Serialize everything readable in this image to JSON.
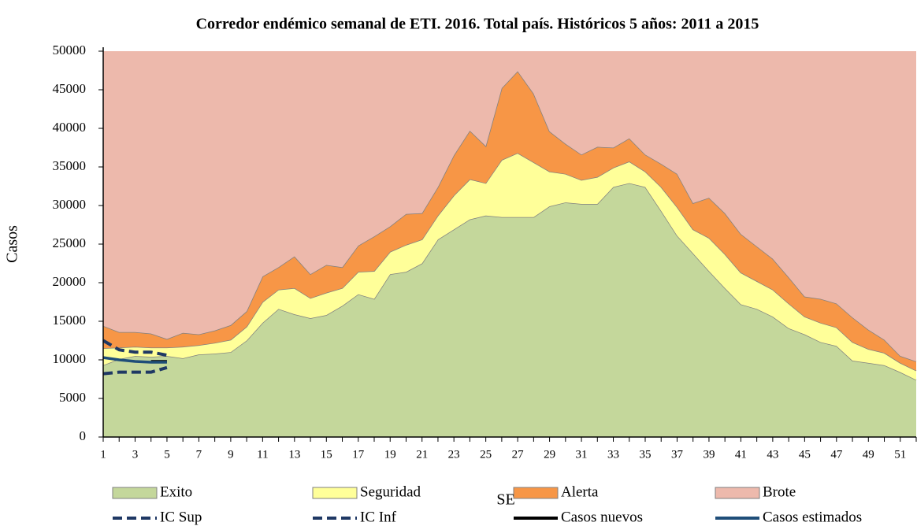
{
  "chart_data": {
    "type": "area",
    "title": "Corredor endémico semanal de ETI. 2016. Total país. Históricos 5 años: 2011 a 2015",
    "xlabel": "SE",
    "ylabel": "Casos",
    "categories": [
      1,
      null,
      3,
      null,
      5,
      null,
      7,
      null,
      9,
      null,
      11,
      null,
      13,
      null,
      15,
      null,
      17,
      null,
      19,
      null,
      21,
      null,
      23,
      null,
      25,
      null,
      27,
      null,
      29,
      null,
      31,
      null,
      33,
      null,
      35,
      null,
      37,
      null,
      39,
      null,
      41,
      null,
      43,
      null,
      45,
      null,
      47,
      null,
      49,
      null,
      51,
      null
    ],
    "ylim": [
      0,
      50000
    ],
    "yticks": [
      0,
      5000,
      10000,
      15000,
      20000,
      25000,
      30000,
      35000,
      40000,
      45000,
      50000
    ],
    "stacked": true,
    "series": [
      {
        "name": "Exito",
        "color": "#c4d79b",
        "values": [
          9300,
          10100,
          10500,
          10400,
          10500,
          10200,
          10700,
          10800,
          11000,
          12500,
          14800,
          16600,
          15900,
          15400,
          15800,
          17000,
          18500,
          17900,
          21100,
          21400,
          22500,
          25600,
          26900,
          28200,
          28700,
          28500,
          28500,
          28500,
          29900,
          30400,
          30200,
          30200,
          32400,
          32900,
          32400,
          29300,
          26100,
          23800,
          21500,
          19300,
          17200,
          16600,
          15600,
          14100,
          13300,
          12300,
          11800,
          9900,
          9600,
          9300,
          8400,
          7400
        ]
      },
      {
        "name": "Seguridad",
        "color": "#ffff99",
        "values": [
          2200,
          1500,
          1200,
          1200,
          1100,
          1500,
          1200,
          1400,
          1600,
          1800,
          2700,
          2500,
          3400,
          2600,
          2900,
          2300,
          2900,
          3600,
          2900,
          3500,
          3100,
          3100,
          4400,
          5200,
          4200,
          7400,
          8300,
          7100,
          4500,
          3700,
          3100,
          3500,
          2500,
          2800,
          2000,
          3100,
          3700,
          3100,
          4300,
          4400,
          4100,
          3600,
          3500,
          3200,
          2300,
          2500,
          2400,
          2400,
          1800,
          1600,
          1200,
          1200
        ]
      },
      {
        "name": "Alerta",
        "color": "#f79646",
        "values": [
          2900,
          2000,
          1900,
          1800,
          1100,
          1800,
          1400,
          1600,
          1900,
          2000,
          3300,
          2900,
          4100,
          3100,
          3600,
          2700,
          3400,
          4500,
          3300,
          4000,
          3400,
          3700,
          5200,
          6300,
          4800,
          9300,
          10600,
          8900,
          5200,
          3900,
          3300,
          3900,
          2600,
          3000,
          2200,
          3000,
          4300,
          3400,
          5200,
          5300,
          5000,
          4500,
          4000,
          3400,
          2600,
          3100,
          3100,
          3200,
          2500,
          1700,
          900,
          1200
        ]
      },
      {
        "name": "Brote",
        "color": "#edb9ac"
      }
    ],
    "lines": [
      {
        "name": "IC Sup",
        "color": "#1f3864",
        "dashed": true,
        "values": [
          12500,
          11300,
          11000,
          11000,
          10600,
          null,
          null,
          null,
          null,
          null,
          null,
          null,
          null,
          null,
          null,
          null,
          null,
          null,
          null,
          null,
          null,
          null,
          null,
          null,
          null,
          null,
          null,
          null,
          null,
          null,
          null,
          null,
          null,
          null,
          null,
          null,
          null,
          null,
          null,
          null,
          null,
          null,
          null,
          null,
          null,
          null,
          null,
          null,
          null,
          null,
          null,
          null
        ]
      },
      {
        "name": "IC Inf",
        "color": "#1f3864",
        "dashed": true,
        "values": [
          8200,
          8400,
          8400,
          8400,
          9000,
          null,
          null,
          null,
          null,
          null,
          null,
          null,
          null,
          null,
          null,
          null,
          null,
          null,
          null,
          null,
          null,
          null,
          null,
          null,
          null,
          null,
          null,
          null,
          null,
          null,
          null,
          null,
          null,
          null,
          null,
          null,
          null,
          null,
          null,
          null,
          null,
          null,
          null,
          null,
          null,
          null,
          null,
          null,
          null,
          null,
          null,
          null
        ]
      },
      {
        "name": "Casos nuevos",
        "color": "#000000",
        "dashed": false,
        "values": [
          null,
          null,
          null,
          9800,
          9800,
          null,
          null,
          null,
          null,
          null,
          null,
          null,
          null,
          null,
          null,
          null,
          null,
          null,
          null,
          null,
          null,
          null,
          null,
          null,
          null,
          null,
          null,
          null,
          null,
          null,
          null,
          null,
          null,
          null,
          null,
          null,
          null,
          null,
          null,
          null,
          null,
          null,
          null,
          null,
          null,
          null,
          null,
          null,
          null,
          null,
          null,
          null
        ]
      },
      {
        "name": "Casos estimados",
        "color": "#1f4e79",
        "dashed": false,
        "values": [
          10300,
          10000,
          9800,
          9700,
          9700,
          null,
          null,
          null,
          null,
          null,
          null,
          null,
          null,
          null,
          null,
          null,
          null,
          null,
          null,
          null,
          null,
          null,
          null,
          null,
          null,
          null,
          null,
          null,
          null,
          null,
          null,
          null,
          null,
          null,
          null,
          null,
          null,
          null,
          null,
          null,
          null,
          null,
          null,
          null,
          null,
          null,
          null,
          null,
          null,
          null,
          null,
          null
        ]
      }
    ]
  }
}
